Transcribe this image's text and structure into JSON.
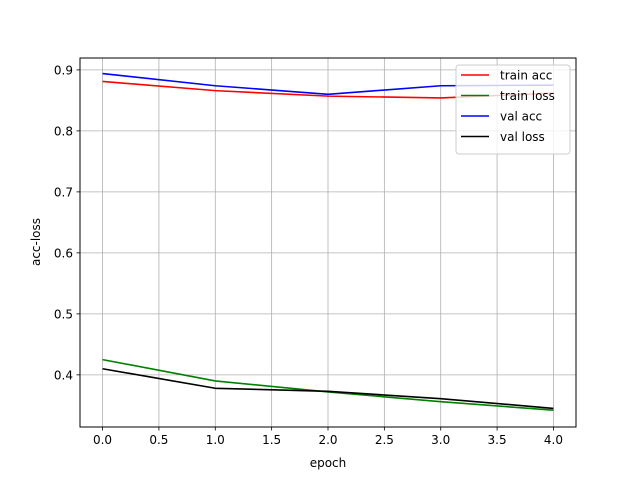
{
  "chart_data": {
    "type": "line",
    "title": "",
    "xlabel": "epoch",
    "ylabel": "acc-loss",
    "xlim": [
      -0.2,
      4.2
    ],
    "ylim": [
      0.3145,
      0.9195
    ],
    "xticks": [
      0.0,
      0.5,
      1.0,
      1.5,
      2.0,
      2.5,
      3.0,
      3.5,
      4.0
    ],
    "yticks": [
      0.4,
      0.5,
      0.6,
      0.7,
      0.8,
      0.9
    ],
    "grid": true,
    "legend_position": "top-right",
    "x": [
      0,
      1,
      2,
      3,
      4
    ],
    "series": [
      {
        "name": "train acc",
        "color": "#ff0000",
        "values": [
          0.881,
          0.866,
          0.857,
          0.854,
          0.862
        ]
      },
      {
        "name": "train loss",
        "color": "#008000",
        "values": [
          0.425,
          0.39,
          0.372,
          0.356,
          0.342
        ]
      },
      {
        "name": "val acc",
        "color": "#0000ff",
        "values": [
          0.894,
          0.874,
          0.86,
          0.874,
          0.875
        ]
      },
      {
        "name": "val loss",
        "color": "#000000",
        "values": [
          0.41,
          0.378,
          0.373,
          0.361,
          0.345
        ]
      }
    ]
  }
}
